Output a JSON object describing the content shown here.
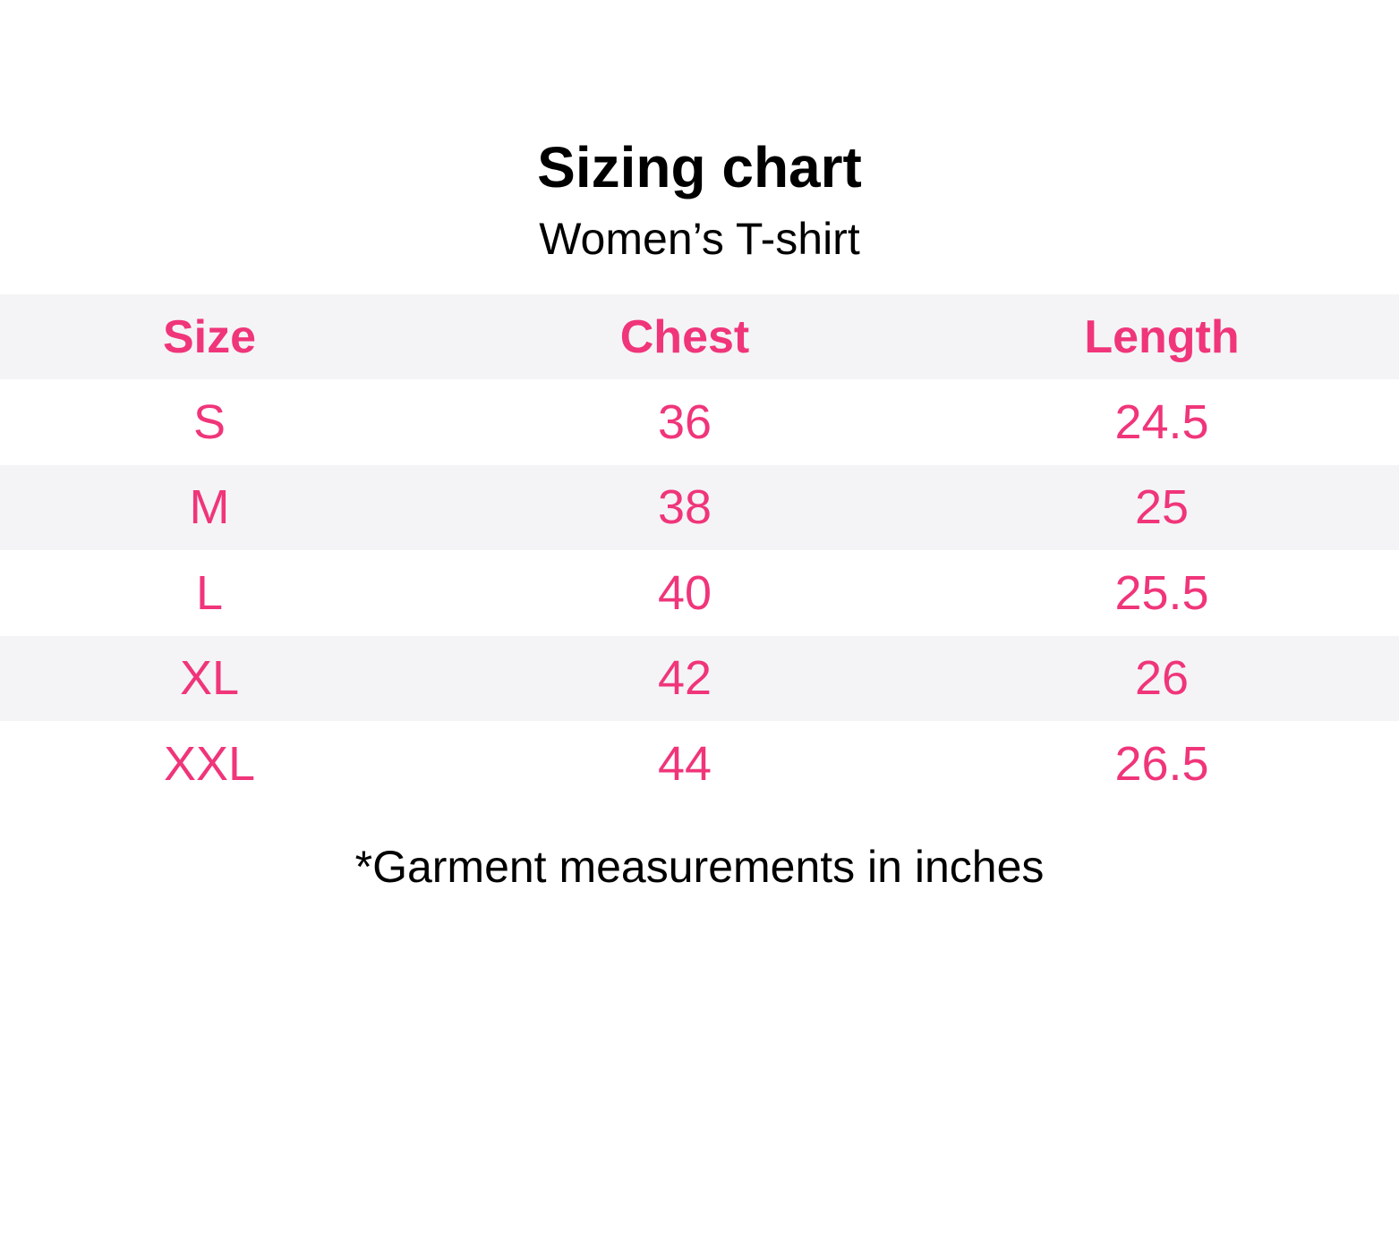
{
  "title": "Sizing chart",
  "subtitle": "Women’s T-shirt",
  "table": {
    "headers": [
      "Size",
      "Chest",
      "Length"
    ],
    "rows": [
      [
        "S",
        "36",
        "24.5"
      ],
      [
        "M",
        "38",
        "25"
      ],
      [
        "L",
        "40",
        "25.5"
      ],
      [
        "XL",
        "42",
        "26"
      ],
      [
        "XXL",
        "44",
        "26.5"
      ]
    ]
  },
  "footnote": "*Garment measurements in inches",
  "colors": {
    "accent": "#f0357a",
    "row_shade": "#f4f4f6",
    "text": "#000000"
  }
}
